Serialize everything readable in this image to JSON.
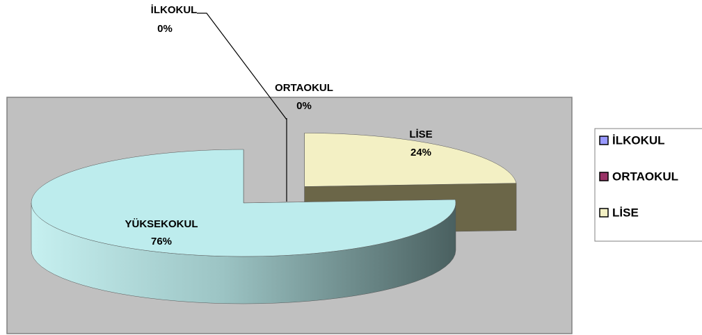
{
  "chart_data": {
    "type": "pie3d",
    "categories": [
      "İLKOKUL",
      "ORTAOKUL",
      "LİSE",
      "YÜKSEKOKUL"
    ],
    "values": [
      0,
      0,
      24,
      76
    ],
    "value_labels": [
      "0%",
      "0%",
      "24%",
      "76%"
    ],
    "colors": [
      "#9999ff",
      "#993366",
      "#f3f0c4",
      "#bdeced"
    ],
    "side_colors": [
      "#5c5c99",
      "#5c1f3d",
      "#6b6648",
      "#4e6464"
    ],
    "exploded": [
      "LİSE"
    ],
    "legend": "right"
  }
}
